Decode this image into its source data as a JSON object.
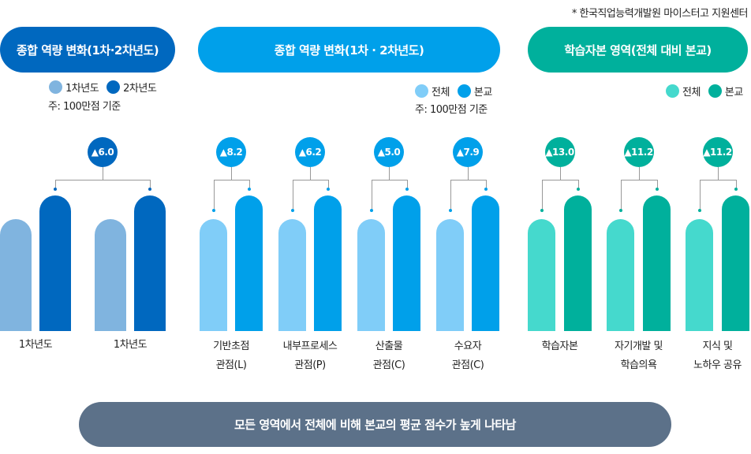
{
  "source_note": "* 한국직업능력개발원 마이스터고 지원센터",
  "colors": {
    "dark_blue": "#0068bf",
    "light_blue": "#80b4df",
    "bright_blue": "#00a0ea",
    "pale_blue": "#80cdf8",
    "teal": "#00b09c",
    "light_teal": "#45d9cd",
    "footer": "#5c7189"
  },
  "chart_data": [
    {
      "type": "bar",
      "title": "종합 역량 변화(1차·2차년도)",
      "legend": [
        "1차년도",
        "2차년도"
      ],
      "note": "주: 100만점 기준",
      "categories": [
        "1차년도",
        "1차년도"
      ],
      "differences": [
        "▲6.0"
      ]
    },
    {
      "type": "bar",
      "title": "종합 역량 변화(1차 · 2차년도)",
      "legend": [
        "전체",
        "본교"
      ],
      "note": "주: 100만점 기준",
      "categories": [
        "기반초점\n관점(L)",
        "내부프로세스\n관점(P)",
        "산출물\n관점(C)",
        "수요자\n관점(C)"
      ],
      "differences": [
        "▲8.2",
        "▲6.2",
        "▲5.0",
        "▲7.9"
      ]
    },
    {
      "type": "bar",
      "title": "학습자본 영역(전체 대비 본교)",
      "legend": [
        "전체",
        "본교"
      ],
      "categories": [
        "학습자본",
        "자기개발 및\n학습의욕",
        "지식 및\n노하우 공유"
      ],
      "differences": [
        "▲13.0",
        "▲11.2",
        "▲11.2"
      ]
    }
  ],
  "footer": "모든 영역에서 전체에 비해 본교의 평균 점수가 높게 나타남"
}
